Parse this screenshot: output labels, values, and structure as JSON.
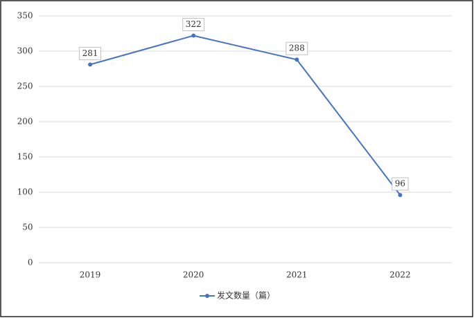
{
  "chart_data": {
    "type": "line",
    "categories": [
      "2019",
      "2020",
      "2021",
      "2022"
    ],
    "series": [
      {
        "name": "发文数量（篇）",
        "color": "#4472c4",
        "values": [
          281,
          322,
          288,
          96
        ]
      }
    ],
    "ylim": [
      0,
      350
    ],
    "yticks": [
      0,
      50,
      100,
      150,
      200,
      250,
      300,
      350
    ],
    "grid": true,
    "legend": "bottom",
    "data_labels": true
  }
}
